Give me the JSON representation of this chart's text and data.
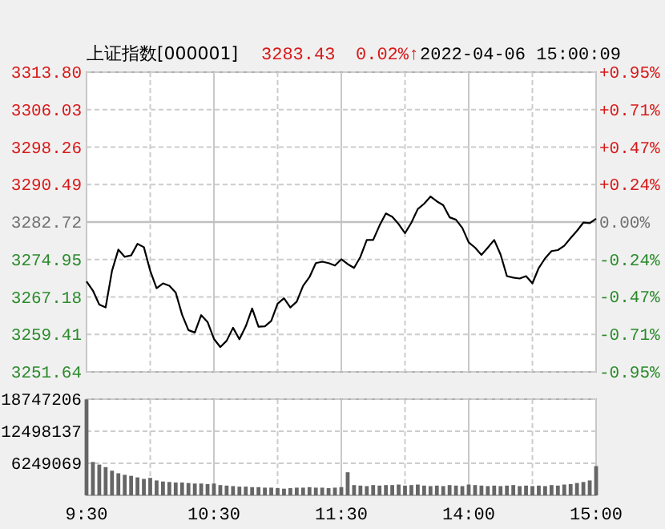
{
  "chart_data": [
    {
      "type": "line",
      "title": "上证指数[000001]",
      "annotations": [
        "3283.43",
        "0.02%↑",
        "2022-04-06 15:00:09"
      ],
      "categories": [
        null,
        null,
        null,
        null,
        null,
        null,
        null,
        null,
        null,
        null,
        null,
        null,
        null,
        null,
        null,
        null,
        null,
        null,
        null,
        null,
        null,
        null,
        null,
        null,
        null,
        null,
        null,
        null,
        null,
        null,
        null,
        null,
        null,
        null,
        null,
        null,
        null,
        null,
        null,
        null,
        null,
        null,
        null,
        null,
        null,
        null,
        null,
        null,
        null,
        null,
        null,
        null,
        null,
        null,
        null,
        null,
        null,
        null,
        null,
        null,
        null,
        null,
        null,
        null,
        null,
        null,
        null,
        null,
        null,
        null,
        null,
        null,
        null,
        null,
        null,
        null,
        null,
        null,
        null,
        null,
        null
      ],
      "values": [
        3270.4,
        3268.5,
        3265.6,
        3265.0,
        3272.6,
        3277.0,
        3275.5,
        3275.8,
        3278.2,
        3277.5,
        3272.6,
        3269.0,
        3270.0,
        3269.5,
        3268.1,
        3263.5,
        3260.3,
        3259.8,
        3263.4,
        3262.0,
        3258.5,
        3256.8,
        3258.1,
        3260.8,
        3258.4,
        3261.1,
        3264.8,
        3261.0,
        3261.1,
        3262.2,
        3265.8,
        3266.9,
        3265.0,
        3266.2,
        3269.5,
        3271.3,
        3274.2,
        3274.5,
        3274.2,
        3273.7,
        3275.0,
        3274.0,
        3273.2,
        3275.5,
        3279.0,
        3279.0,
        3282.0,
        3284.5,
        3283.8,
        3282.3,
        3280.4,
        3282.6,
        3285.4,
        3286.5,
        3288.0,
        3287.0,
        3286.2,
        3283.7,
        3283.2,
        3281.5,
        3278.5,
        3277.4,
        3275.9,
        3277.4,
        3279.0,
        3276.0,
        3271.5,
        3271.2,
        3271.0,
        3271.5,
        3270.0,
        3273.2,
        3275.2,
        3276.7,
        3276.9,
        3277.8,
        3279.4,
        3280.9,
        3282.6,
        3282.5,
        3283.4
      ],
      "color": "#000000",
      "ylim": [
        3251.64,
        3313.8
      ],
      "yticks": [
        3251.64,
        3259.41,
        3267.18,
        3274.95,
        3282.72,
        3290.49,
        3298.26,
        3306.03,
        {
          "value": 3313.8,
          "label": "3313.80"
        }
      ],
      "y2lim": [
        -0.95,
        0.95
      ],
      "y2ticks": [
        {
          "value": -0.95,
          "label": "-0.95%"
        },
        {
          "value": -0.71,
          "label": "-0.71%"
        },
        {
          "value": -0.47,
          "label": "-0.47%"
        },
        {
          "value": -0.24,
          "label": "-0.24%"
        },
        {
          "value": 0,
          "label": "0.00%"
        },
        {
          "value": 0.24,
          "label": "+0.24%"
        },
        {
          "value": 0.47,
          "label": "+0.47%"
        },
        {
          "value": 0.71,
          "label": "+0.71%"
        },
        {
          "value": 0.95,
          "label": "+0.95%"
        }
      ],
      "ref_lines": [
        {
          "axis": "y",
          "value": 3282.72,
          "color": "#c0c0c0"
        }
      ],
      "grid": true,
      "tick_labels": "y"
    },
    {
      "type": "bar",
      "color": "#666666",
      "categories": [
        "9:30",
        null,
        null,
        null,
        null,
        null,
        null,
        null,
        null,
        null,
        null,
        null,
        null,
        null,
        null,
        null,
        null,
        null,
        null,
        null,
        "10:30",
        null,
        null,
        null,
        null,
        null,
        null,
        null,
        null,
        null,
        null,
        null,
        null,
        null,
        null,
        null,
        null,
        null,
        null,
        null,
        "11:30",
        null,
        null,
        null,
        null,
        null,
        null,
        null,
        null,
        null,
        null,
        null,
        null,
        null,
        null,
        null,
        null,
        null,
        null,
        null,
        "14:00",
        null,
        null,
        null,
        null,
        null,
        null,
        null,
        null,
        null,
        null,
        null,
        null,
        null,
        null,
        null,
        null,
        null,
        null,
        null,
        "15:00"
      ],
      "values": [
        18700000,
        6500000,
        6000000,
        5500000,
        4800000,
        4300000,
        4000000,
        3800000,
        3500000,
        3200000,
        3400000,
        2900000,
        2700000,
        2600000,
        2500000,
        2500000,
        2400000,
        2300000,
        2300000,
        2200000,
        2300000,
        2000000,
        1900000,
        1800000,
        1700000,
        1700000,
        1600000,
        1600000,
        1500000,
        1500000,
        1400000,
        1300000,
        1400000,
        1500000,
        1500000,
        1600000,
        1500000,
        1500000,
        1400000,
        1500000,
        1600000,
        4500000,
        2000000,
        1900000,
        1800000,
        2000000,
        1900000,
        2000000,
        2000000,
        2100000,
        1900000,
        2000000,
        2100000,
        1900000,
        1800000,
        1900000,
        1800000,
        2000000,
        1900000,
        1800000,
        2100000,
        2000000,
        1900000,
        1800000,
        1900000,
        1800000,
        1900000,
        2000000,
        1800000,
        1900000,
        1800000,
        1900000,
        1800000,
        2000000,
        1900000,
        2100000,
        2200000,
        2400000,
        2600000,
        2900000,
        5700000
      ],
      "ylim": [
        0,
        18747206
      ],
      "yticks": [
        6249069,
        12498137,
        18747206
      ],
      "grid": true
    }
  ]
}
